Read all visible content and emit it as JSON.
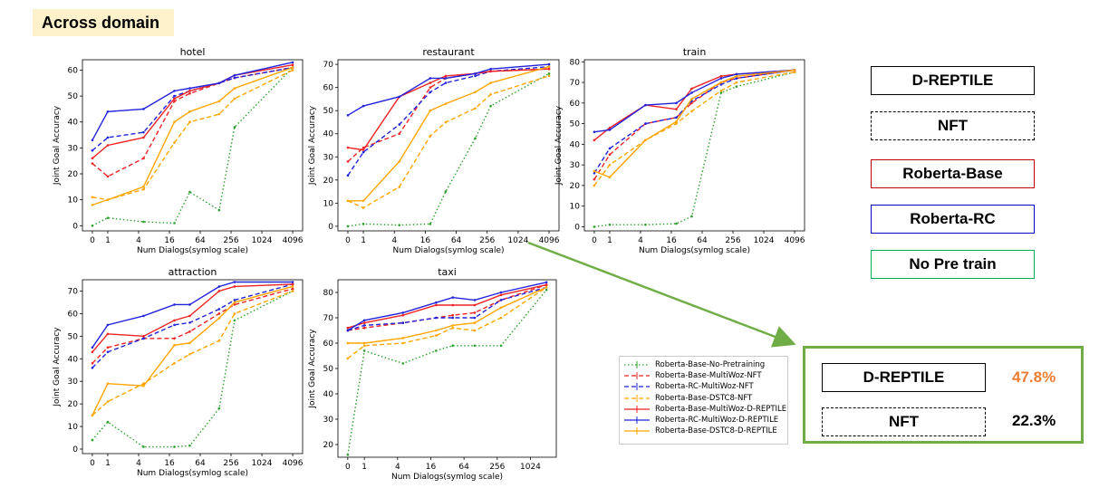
{
  "header": {
    "title": "Across domain"
  },
  "legend_boxes": [
    {
      "label": "D-REPTILE",
      "border_color": "#000000",
      "style": "solid"
    },
    {
      "label": "NFT",
      "border_color": "#000000",
      "style": "dashed"
    },
    {
      "label": "Roberta-Base",
      "border_color": "#c00000",
      "style": "solid"
    },
    {
      "label": "Roberta-RC",
      "border_color": "#0000c0",
      "style": "solid"
    },
    {
      "label": "No Pre train",
      "border_color": "#00b050",
      "style": "solid"
    }
  ],
  "inset": {
    "border_color": "#70ad47",
    "rows": [
      {
        "label": "D-REPTILE",
        "style": "solid",
        "value": "47.8%",
        "value_color": "#ed7d31"
      },
      {
        "label": "NFT",
        "style": "dashed",
        "value": "22.3%",
        "value_color": "#000000"
      }
    ]
  },
  "series_legend": [
    {
      "name": "Roberta-Base-No-Pretraining",
      "color": "#2ca02c",
      "dash": "dot"
    },
    {
      "name": "Roberta-Base-MultiWoz-NFT",
      "color": "#ee2222",
      "dash": "dash"
    },
    {
      "name": "Roberta-RC-MultiWoz-NFT",
      "color": "#2222dd",
      "dash": "dash"
    },
    {
      "name": "Roberta-Base-DSTC8-NFT",
      "color": "#ffa500",
      "dash": "dash"
    },
    {
      "name": "Roberta-Base-MultiWoz-D-REPTILE",
      "color": "#ee2222",
      "dash": "solid"
    },
    {
      "name": "Roberta-RC-MultiWoz-D-REPTILE",
      "color": "#2222dd",
      "dash": "solid"
    },
    {
      "name": "Roberta-Base-DSTC8-D-REPTILE",
      "color": "#ffa500",
      "dash": "solid"
    }
  ],
  "chart_data": [
    {
      "type": "line",
      "title": "hotel",
      "xlabel": "Num Dialogs(symlog scale)",
      "ylabel": "Joint Goal Accuracy",
      "x": [
        0,
        1,
        5,
        20,
        40,
        150,
        300,
        4096
      ],
      "xticks": [
        "0",
        "1",
        "4",
        "16",
        "64",
        "256",
        "1024",
        "4096"
      ],
      "xlim": [
        0,
        4096
      ],
      "ylim": [
        -2,
        64
      ],
      "yticks": [
        0,
        10,
        20,
        30,
        40,
        50,
        60
      ],
      "series": [
        {
          "values": [
            0,
            3,
            1.5,
            1,
            13,
            6,
            38,
            61
          ]
        },
        {
          "values": [
            24,
            19,
            26,
            48,
            51,
            55,
            57,
            61
          ]
        },
        {
          "values": [
            29,
            34,
            36,
            50,
            52,
            55,
            57,
            61
          ]
        },
        {
          "values": [
            11,
            10,
            14,
            32,
            40,
            43,
            49,
            60
          ]
        },
        {
          "values": [
            26,
            31,
            34,
            49,
            52,
            55,
            58,
            62
          ]
        },
        {
          "values": [
            33,
            44,
            45,
            52,
            53,
            55,
            58,
            63
          ]
        },
        {
          "values": [
            8,
            10,
            15,
            40,
            44,
            48,
            53,
            61
          ]
        }
      ]
    },
    {
      "type": "line",
      "title": "restaurant",
      "xlabel": "Num Dialogs(symlog scale)",
      "ylabel": "Joint Goal Accuracy",
      "x": [
        0,
        1,
        5,
        20,
        40,
        150,
        300,
        4096
      ],
      "xticks": [
        "0",
        "1",
        "4",
        "16",
        "64",
        "256",
        "1024",
        "4096"
      ],
      "xlim": [
        0,
        4096
      ],
      "ylim": [
        -2,
        72
      ],
      "yticks": [
        0,
        10,
        20,
        30,
        40,
        50,
        60,
        70
      ],
      "series": [
        {
          "values": [
            0,
            1,
            0.5,
            1,
            15,
            38,
            52,
            66
          ]
        },
        {
          "values": [
            28,
            34,
            40,
            60,
            64,
            66,
            67,
            68
          ]
        },
        {
          "values": [
            22,
            32,
            44,
            58,
            62,
            65,
            67,
            69
          ]
        },
        {
          "values": [
            11,
            8,
            17,
            39,
            45,
            51,
            57,
            65
          ]
        },
        {
          "values": [
            34,
            33,
            56,
            62,
            65,
            66,
            67,
            68
          ]
        },
        {
          "values": [
            48,
            52,
            56,
            64,
            64,
            66,
            68,
            70
          ]
        },
        {
          "values": [
            11,
            11,
            28,
            50,
            53,
            58,
            62,
            69
          ]
        }
      ]
    },
    {
      "type": "line",
      "title": "train",
      "xlabel": "Num Dialogs(symlog scale)",
      "ylabel": "Joint Goal Accuracy",
      "x": [
        0,
        1,
        5,
        20,
        40,
        150,
        300,
        4096
      ],
      "xticks": [
        "0",
        "1",
        "4",
        "16",
        "64",
        "256",
        "1024",
        "4096"
      ],
      "xlim": [
        0,
        4096
      ],
      "ylim": [
        -2,
        81
      ],
      "yticks": [
        0,
        10,
        20,
        30,
        40,
        50,
        60,
        70,
        80
      ],
      "series": [
        {
          "values": [
            0,
            1,
            1,
            1.5,
            5,
            65,
            68,
            75
          ]
        },
        {
          "values": [
            23,
            35,
            50,
            53,
            60,
            70,
            72,
            76
          ]
        },
        {
          "values": [
            26,
            38,
            50,
            53,
            61,
            69,
            72,
            76
          ]
        },
        {
          "values": [
            20,
            30,
            42,
            50,
            56,
            66,
            70,
            75
          ]
        },
        {
          "values": [
            42,
            48,
            59,
            57,
            67,
            73,
            74,
            76
          ]
        },
        {
          "values": [
            46,
            47,
            59,
            60,
            65,
            72,
            74,
            76
          ]
        },
        {
          "values": [
            27,
            24,
            42,
            51,
            62,
            70,
            73,
            76
          ]
        }
      ]
    },
    {
      "type": "line",
      "title": "attraction",
      "xlabel": "Num Dialogs(symlog scale)",
      "ylabel": "Joint Goal Accuracy",
      "x": [
        0,
        1,
        5,
        20,
        40,
        150,
        300,
        4096
      ],
      "xticks": [
        "0",
        "1",
        "4",
        "16",
        "64",
        "256",
        "1024",
        "4096"
      ],
      "xlim": [
        0,
        4096
      ],
      "ylim": [
        -2,
        75
      ],
      "yticks": [
        0,
        10,
        20,
        30,
        40,
        50,
        60,
        70
      ],
      "series": [
        {
          "values": [
            4,
            12,
            1,
            1,
            1.5,
            18,
            57,
            70
          ]
        },
        {
          "values": [
            38,
            45,
            49,
            49,
            52,
            60,
            64,
            71
          ]
        },
        {
          "values": [
            36,
            43,
            49,
            55,
            56,
            62,
            66,
            73
          ]
        },
        {
          "values": [
            15,
            21,
            29,
            38,
            42,
            48,
            60,
            70
          ]
        },
        {
          "values": [
            43,
            51,
            50,
            57,
            59,
            70,
            72,
            73
          ]
        },
        {
          "values": [
            45,
            55,
            59,
            64,
            64,
            72,
            74,
            74
          ]
        },
        {
          "values": [
            15,
            29,
            28,
            46,
            47,
            58,
            65,
            72
          ]
        }
      ]
    },
    {
      "type": "line",
      "title": "taxi",
      "xlabel": "Num Dialogs(symlog scale)",
      "ylabel": "Joint Goal Accuracy",
      "x": [
        0,
        1,
        5,
        20,
        40,
        100,
        300,
        2000
      ],
      "xticks": [
        "0",
        "1",
        "4",
        "16",
        "64",
        "256",
        "1024"
      ],
      "xlim": [
        0,
        2000
      ],
      "ylim": [
        15,
        85
      ],
      "yticks": [
        20,
        30,
        40,
        50,
        60,
        70,
        80
      ],
      "series": [
        {
          "values": [
            16,
            57,
            52,
            57,
            59,
            59,
            59,
            81
          ]
        },
        {
          "values": [
            65,
            66,
            68,
            70,
            71,
            72,
            77,
            83
          ]
        },
        {
          "values": [
            65,
            67,
            68,
            70,
            70,
            70,
            77,
            82
          ]
        },
        {
          "values": [
            54,
            59,
            60,
            63,
            66,
            65,
            70,
            82
          ]
        },
        {
          "values": [
            66,
            68,
            71,
            75,
            75,
            75,
            79,
            83
          ]
        },
        {
          "values": [
            65,
            69,
            72,
            76,
            78,
            77,
            80,
            84
          ]
        },
        {
          "values": [
            60,
            60,
            62,
            65,
            67,
            68,
            74,
            82
          ]
        }
      ]
    }
  ]
}
